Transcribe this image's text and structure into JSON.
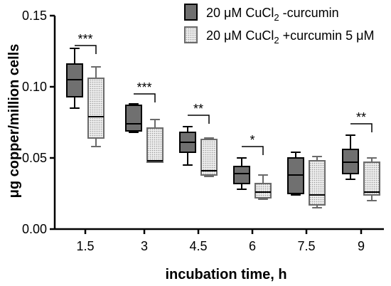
{
  "chart_data": {
    "type": "box",
    "xlabel": "incubation time, h",
    "ylabel": "μg copper/million cells",
    "ylim": [
      0,
      0.15
    ],
    "y_ticks": [
      "0.00",
      "0.05",
      "0.10",
      "0.15"
    ],
    "categories": [
      "1.5",
      "3",
      "4.5",
      "6",
      "7.5",
      "9"
    ],
    "legend_position": "top-right",
    "grid": false,
    "series": [
      {
        "key": "minus",
        "name_main": "20 μM CuCl",
        "name_sub": "2",
        "name_tail": " -curcumin",
        "color": "#707070",
        "pattern": "solid",
        "boxes": [
          {
            "min": 0.085,
            "q1": 0.093,
            "median": 0.105,
            "q3": 0.116,
            "max": 0.127
          },
          {
            "min": 0.068,
            "q1": 0.069,
            "median": 0.074,
            "q3": 0.087,
            "max": 0.088
          },
          {
            "min": 0.045,
            "q1": 0.054,
            "median": 0.061,
            "q3": 0.068,
            "max": 0.072
          },
          {
            "min": 0.028,
            "q1": 0.032,
            "median": 0.039,
            "q3": 0.044,
            "max": 0.05
          },
          {
            "min": 0.024,
            "q1": 0.025,
            "median": 0.038,
            "q3": 0.05,
            "max": 0.054
          },
          {
            "min": 0.035,
            "q1": 0.039,
            "median": 0.047,
            "q3": 0.056,
            "max": 0.066
          }
        ]
      },
      {
        "key": "plus",
        "name_main": "20 μM CuCl",
        "name_sub": "2",
        "name_tail": " +curcumin 5 μM",
        "color": "#c8c8c8",
        "pattern": "dotted",
        "boxes": [
          {
            "min": 0.058,
            "q1": 0.064,
            "median": 0.079,
            "q3": 0.106,
            "max": 0.114
          },
          {
            "min": 0.047,
            "q1": 0.047,
            "median": 0.048,
            "q3": 0.071,
            "max": 0.077
          },
          {
            "min": 0.037,
            "q1": 0.038,
            "median": 0.041,
            "q3": 0.063,
            "max": 0.064
          },
          {
            "min": 0.021,
            "q1": 0.022,
            "median": 0.026,
            "q3": 0.032,
            "max": 0.038
          },
          {
            "min": 0.015,
            "q1": 0.017,
            "median": 0.024,
            "q3": 0.048,
            "max": 0.051
          },
          {
            "min": 0.02,
            "q1": 0.024,
            "median": 0.026,
            "q3": 0.047,
            "max": 0.05
          }
        ]
      }
    ],
    "significance": [
      {
        "category": "1.5",
        "label": "***",
        "y": 0.129
      },
      {
        "category": "3",
        "label": "***",
        "y": 0.095
      },
      {
        "category": "4.5",
        "label": "**",
        "y": 0.08
      },
      {
        "category": "6",
        "label": "*",
        "y": 0.058
      },
      {
        "category": "9",
        "label": "**",
        "y": 0.074
      }
    ]
  }
}
